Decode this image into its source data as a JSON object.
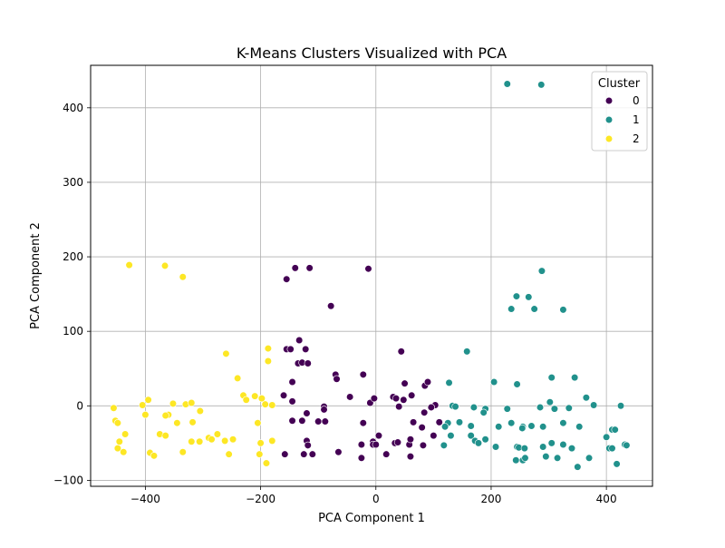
{
  "chart_data": {
    "type": "scatter",
    "title": "K-Means Clusters Visualized with PCA",
    "xlabel": "PCA Component 1",
    "ylabel": "PCA Component 2",
    "xlim": [
      -495,
      480
    ],
    "ylim": [
      -108,
      457
    ],
    "xticks": [
      -400,
      -200,
      0,
      200,
      400
    ],
    "yticks": [
      -100,
      0,
      100,
      200,
      300,
      400
    ],
    "grid": true,
    "legend": {
      "title": "Cluster",
      "placement": "upper right"
    },
    "series": [
      {
        "name": "0",
        "color": "#440154",
        "points": [
          [
            -155,
            170
          ],
          [
            -140,
            185
          ],
          [
            -115,
            185
          ],
          [
            -13,
            184
          ],
          [
            -78,
            134
          ],
          [
            -133,
            88
          ],
          [
            -155,
            76
          ],
          [
            -148,
            76
          ],
          [
            -122,
            76
          ],
          [
            -135,
            57
          ],
          [
            -128,
            58
          ],
          [
            -118,
            57
          ],
          [
            44,
            73
          ],
          [
            -70,
            42
          ],
          [
            -68,
            36
          ],
          [
            -22,
            42
          ],
          [
            -145,
            32
          ],
          [
            -160,
            14
          ],
          [
            -145,
            6
          ],
          [
            -90,
            -1
          ],
          [
            -90,
            -5
          ],
          [
            -120,
            -10
          ],
          [
            -145,
            -20
          ],
          [
            -128,
            -20
          ],
          [
            -100,
            -21
          ],
          [
            -88,
            -21
          ],
          [
            -22,
            -23
          ],
          [
            -10,
            4
          ],
          [
            -3,
            10
          ],
          [
            -45,
            12
          ],
          [
            30,
            12
          ],
          [
            35,
            10
          ],
          [
            48,
            8
          ],
          [
            62,
            14
          ],
          [
            50,
            30
          ],
          [
            85,
            27
          ],
          [
            90,
            32
          ],
          [
            40,
            -1
          ],
          [
            103,
            1
          ],
          [
            96,
            -2
          ],
          [
            84,
            -9
          ],
          [
            65,
            -22
          ],
          [
            80,
            -29
          ],
          [
            110,
            -22
          ],
          [
            5,
            -40
          ],
          [
            -5,
            -48
          ],
          [
            -5,
            -52
          ],
          [
            0,
            -52
          ],
          [
            -25,
            -52
          ],
          [
            33,
            -50
          ],
          [
            38,
            -49
          ],
          [
            58,
            -52
          ],
          [
            60,
            -45
          ],
          [
            82,
            -53
          ],
          [
            100,
            -40
          ],
          [
            -158,
            -65
          ],
          [
            -125,
            -65
          ],
          [
            -110,
            -65
          ],
          [
            -120,
            -47
          ],
          [
            -118,
            -53
          ],
          [
            -65,
            -62
          ],
          [
            -25,
            -70
          ],
          [
            18,
            -65
          ],
          [
            60,
            -68
          ]
        ]
      },
      {
        "name": "1",
        "color": "#21918c",
        "points": [
          [
            228,
            432
          ],
          [
            287,
            431
          ],
          [
            288,
            181
          ],
          [
            244,
            147
          ],
          [
            265,
            146
          ],
          [
            235,
            130
          ],
          [
            275,
            130
          ],
          [
            325,
            129
          ],
          [
            158,
            73
          ],
          [
            205,
            32
          ],
          [
            245,
            29
          ],
          [
            305,
            38
          ],
          [
            345,
            38
          ],
          [
            127,
            31
          ],
          [
            365,
            11
          ],
          [
            378,
            1
          ],
          [
            425,
            0
          ],
          [
            302,
            5
          ],
          [
            285,
            -2
          ],
          [
            310,
            -4
          ],
          [
            228,
            -4
          ],
          [
            190,
            -4
          ],
          [
            187,
            -9
          ],
          [
            170,
            -2
          ],
          [
            133,
            0
          ],
          [
            138,
            -1
          ],
          [
            335,
            -3
          ],
          [
            125,
            -23
          ],
          [
            120,
            -28
          ],
          [
            145,
            -22
          ],
          [
            165,
            -27
          ],
          [
            213,
            -28
          ],
          [
            235,
            -23
          ],
          [
            255,
            -28
          ],
          [
            270,
            -27
          ],
          [
            290,
            -28
          ],
          [
            325,
            -23
          ],
          [
            353,
            -28
          ],
          [
            165,
            -40
          ],
          [
            172,
            -47
          ],
          [
            178,
            -50
          ],
          [
            190,
            -45
          ],
          [
            130,
            -40
          ],
          [
            118,
            -53
          ],
          [
            208,
            -55
          ],
          [
            245,
            -55
          ],
          [
            248,
            -56
          ],
          [
            258,
            -57
          ],
          [
            290,
            -55
          ],
          [
            325,
            -52
          ],
          [
            340,
            -57
          ],
          [
            400,
            -42
          ],
          [
            410,
            -32
          ],
          [
            415,
            -32
          ],
          [
            405,
            -57
          ],
          [
            410,
            -57
          ],
          [
            432,
            -52
          ],
          [
            435,
            -53
          ],
          [
            295,
            -68
          ],
          [
            315,
            -70
          ],
          [
            370,
            -70
          ],
          [
            243,
            -73
          ],
          [
            255,
            -73
          ],
          [
            259,
            -70
          ],
          [
            350,
            -82
          ],
          [
            418,
            -78
          ],
          [
            305,
            -50
          ],
          [
            254,
            -30
          ]
        ]
      },
      {
        "name": "2",
        "color": "#fde725",
        "points": [
          [
            -428,
            189
          ],
          [
            -366,
            188
          ],
          [
            -335,
            173
          ],
          [
            -260,
            70
          ],
          [
            -187,
            77
          ],
          [
            -187,
            60
          ],
          [
            -240,
            37
          ],
          [
            -230,
            14
          ],
          [
            -225,
            8
          ],
          [
            -210,
            13
          ],
          [
            -198,
            10
          ],
          [
            -192,
            2
          ],
          [
            -180,
            1
          ],
          [
            -395,
            8
          ],
          [
            -405,
            1
          ],
          [
            -400,
            -12
          ],
          [
            -330,
            2
          ],
          [
            -320,
            4
          ],
          [
            -352,
            3
          ],
          [
            -360,
            -12
          ],
          [
            -365,
            -13
          ],
          [
            -345,
            -23
          ],
          [
            -318,
            -22
          ],
          [
            -305,
            -7
          ],
          [
            -455,
            -3
          ],
          [
            -452,
            -20
          ],
          [
            -448,
            -23
          ],
          [
            -435,
            -38
          ],
          [
            -375,
            -38
          ],
          [
            -365,
            -40
          ],
          [
            -290,
            -43
          ],
          [
            -285,
            -45
          ],
          [
            -275,
            -38
          ],
          [
            -262,
            -47
          ],
          [
            -248,
            -45
          ],
          [
            -205,
            -23
          ],
          [
            -200,
            -50
          ],
          [
            -180,
            -47
          ],
          [
            -320,
            -48
          ],
          [
            -306,
            -48
          ],
          [
            -445,
            -48
          ],
          [
            -448,
            -57
          ],
          [
            -438,
            -62
          ],
          [
            -392,
            -63
          ],
          [
            -385,
            -67
          ],
          [
            -335,
            -62
          ],
          [
            -255,
            -65
          ],
          [
            -202,
            -65
          ],
          [
            -190,
            -77
          ]
        ]
      }
    ]
  }
}
